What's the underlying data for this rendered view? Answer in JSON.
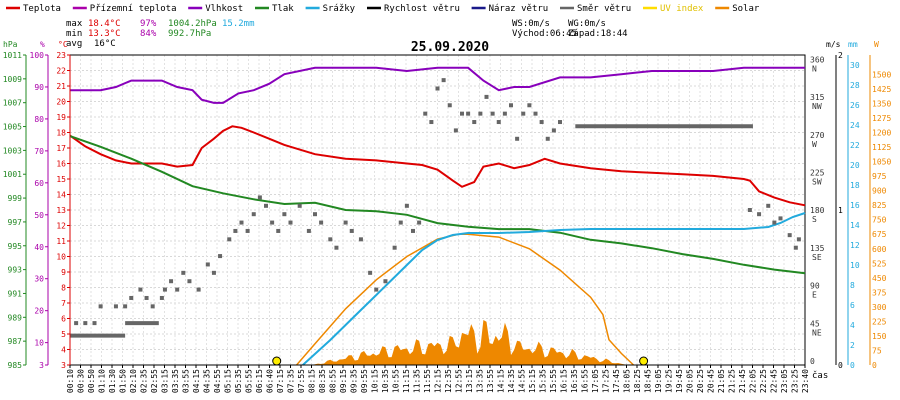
{
  "chart_data": {
    "type": "line",
    "title": "25.09.2020",
    "xlabel": "čas",
    "legend": [
      {
        "key": "teplota",
        "label": "Teplota",
        "color": "#dd0000"
      },
      {
        "key": "prizemni",
        "label": "Přízemní teplota",
        "color": "#aa00aa"
      },
      {
        "key": "vlhkost",
        "label": "Vlhkost",
        "color": "#8800bb"
      },
      {
        "key": "tlak",
        "label": "Tlak",
        "color": "#228822"
      },
      {
        "key": "srazky",
        "label": "Srážky",
        "color": "#22aadd"
      },
      {
        "key": "rychlost",
        "label": "Rychlost větru",
        "color": "#000000"
      },
      {
        "key": "naraz",
        "label": "Náraz větru",
        "color": "#1a1a8a"
      },
      {
        "key": "smer",
        "label": "Směr větru",
        "color": "#666666"
      },
      {
        "key": "uv",
        "label": "UV index",
        "color": "#ffdd00"
      },
      {
        "key": "solar",
        "label": "Solar",
        "color": "#ee8800"
      }
    ],
    "stats": {
      "max_label": "max",
      "max_temp": "18.4°C",
      "max_hum": "97%",
      "max_press": "1004.2hPa",
      "max_rain": "15.2mm",
      "min_label": "min",
      "min_temp": "13.3°C",
      "min_hum": "84%",
      "min_press": "992.7hPa",
      "avg_label": "avg",
      "avg_temp": "16°C",
      "ws": "WS:0m/s",
      "wg": "WG:0m/s",
      "sunrise": "Východ:06:45",
      "sunset": "Západ:18:44"
    },
    "axes_left": {
      "hpa": {
        "unit": "hPa",
        "color": "#228822",
        "ticks": [
          "985",
          "987",
          "989",
          "991",
          "993",
          "995",
          "997",
          "999",
          "1001",
          "1003",
          "1005",
          "1007",
          "1009",
          "1011"
        ]
      },
      "pct": {
        "unit": "%",
        "color": "#aa00aa",
        "ticks": [
          "3",
          "10",
          "20",
          "30",
          "40",
          "50",
          "60",
          "70",
          "80",
          "90",
          "100"
        ]
      },
      "degc": {
        "unit": "°C",
        "color": "#dd0000",
        "ticks": [
          "3",
          "4",
          "5",
          "6",
          "7",
          "8",
          "9",
          "10",
          "11",
          "12",
          "13",
          "14",
          "15",
          "16",
          "17",
          "18",
          "19",
          "20",
          "21",
          "22",
          "23"
        ]
      }
    },
    "axes_right": {
      "dir": {
        "ticks": [
          {
            "v": 0,
            "d": ""
          },
          {
            "v": 45,
            "d": "NE"
          },
          {
            "v": 90,
            "d": "E"
          },
          {
            "v": 135,
            "d": "SE"
          },
          {
            "v": 180,
            "d": "S"
          },
          {
            "v": 225,
            "d": "SW"
          },
          {
            "v": 270,
            "d": "W"
          },
          {
            "v": 315,
            "d": "NW"
          },
          {
            "v": 360,
            "d": "N"
          }
        ]
      },
      "ms": {
        "unit": "m/s",
        "ticks": [
          "0",
          "1",
          "2"
        ]
      },
      "mm": {
        "unit": "mm",
        "color": "#22aadd",
        "ticks": [
          "0",
          "2",
          "4",
          "6",
          "8",
          "10",
          "12",
          "14",
          "16",
          "18",
          "20",
          "22",
          "24",
          "26",
          "28",
          "30"
        ]
      },
      "w": {
        "unit": "W",
        "color": "#ee8800",
        "ticks": [
          "0",
          "75",
          "150",
          "225",
          "300",
          "375",
          "450",
          "525",
          "600",
          "675",
          "750",
          "825",
          "900",
          "975",
          "1050",
          "1125",
          "1200",
          "1275",
          "1350",
          "1425",
          "1500"
        ]
      }
    },
    "x_ticks": [
      "00:10",
      "00:30",
      "00:50",
      "01:10",
      "01:30",
      "01:50",
      "02:10",
      "02:35",
      "02:55",
      "03:15",
      "03:35",
      "03:55",
      "04:15",
      "04:35",
      "04:55",
      "05:15",
      "05:35",
      "05:55",
      "06:15",
      "06:40",
      "07:15",
      "07:35",
      "07:55",
      "08:15",
      "08:35",
      "08:55",
      "09:15",
      "09:35",
      "09:55",
      "10:15",
      "10:35",
      "10:55",
      "11:15",
      "11:35",
      "11:55",
      "12:15",
      "12:35",
      "12:55",
      "13:15",
      "13:35",
      "13:55",
      "14:15",
      "14:35",
      "14:55",
      "15:15",
      "15:35",
      "15:55",
      "16:15",
      "16:35",
      "16:55",
      "17:05",
      "17:25",
      "17:45",
      "18:05",
      "18:25",
      "18:45",
      "19:05",
      "19:25",
      "19:45",
      "20:05",
      "20:25",
      "20:45",
      "21:05",
      "21:25",
      "21:45",
      "22:05",
      "22:25",
      "22:45",
      "23:05",
      "23:25",
      "23:40"
    ],
    "x_range_hours": [
      0,
      24
    ],
    "series": [
      {
        "key": "teplota",
        "name": "Teplota",
        "color": "#dd0000",
        "axis": "degc",
        "x": [
          0,
          0.5,
          1,
          1.5,
          2,
          2.5,
          3,
          3.5,
          4,
          4.3,
          4.7,
          5,
          5.3,
          5.6,
          6,
          6.5,
          7,
          8,
          9,
          10,
          11,
          11.5,
          12,
          12.5,
          12.8,
          13.2,
          13.5,
          14,
          14.5,
          15,
          15.5,
          16,
          17,
          18,
          19,
          20,
          21,
          22,
          22.2,
          22.5,
          23,
          23.5,
          24
        ],
        "y": [
          17.8,
          17.1,
          16.6,
          16.2,
          16.0,
          16.0,
          16.0,
          15.8,
          15.9,
          17.0,
          17.6,
          18.1,
          18.4,
          18.3,
          18.0,
          17.6,
          17.2,
          16.6,
          16.3,
          16.2,
          16.0,
          15.9,
          15.6,
          14.9,
          14.5,
          14.8,
          15.8,
          16.0,
          15.7,
          15.9,
          16.3,
          16.0,
          15.7,
          15.5,
          15.4,
          15.3,
          15.2,
          15.0,
          14.9,
          14.2,
          13.8,
          13.5,
          13.3
        ]
      },
      {
        "key": "vlhkost",
        "name": "Vlhkost",
        "color": "#8800bb",
        "axis": "pct",
        "x": [
          0,
          0.5,
          1,
          1.5,
          2,
          2.5,
          3,
          3.5,
          4,
          4.3,
          4.7,
          5,
          5.5,
          6,
          6.5,
          7,
          8,
          9,
          10,
          11,
          12,
          12.5,
          13,
          13.5,
          14,
          14.5,
          15,
          16,
          17,
          18,
          19,
          20,
          21,
          22,
          23,
          24
        ],
        "y": [
          89,
          89,
          89,
          90,
          92,
          92,
          92,
          90,
          89,
          86,
          85,
          85,
          88,
          89,
          91,
          94,
          96,
          96,
          96,
          95,
          96,
          96,
          96,
          92,
          89,
          90,
          90,
          93,
          93,
          94,
          95,
          95,
          95,
          96,
          96,
          96
        ]
      },
      {
        "key": "tlak",
        "name": "Tlak",
        "color": "#228822",
        "axis": "hpa",
        "x": [
          0,
          1,
          2,
          3,
          4,
          5,
          6,
          7,
          8,
          9,
          10,
          11,
          12,
          13,
          14,
          15,
          16,
          17,
          18,
          19,
          20,
          21,
          22,
          23,
          24
        ],
        "y": [
          1004.2,
          1003.3,
          1002.3,
          1001.2,
          1000.0,
          999.4,
          998.9,
          998.5,
          998.6,
          998.0,
          997.9,
          997.6,
          996.9,
          996.6,
          996.4,
          996.4,
          996.1,
          995.5,
          995.2,
          994.8,
          994.3,
          993.9,
          993.4,
          993.0,
          992.7
        ]
      },
      {
        "key": "srazky",
        "name": "Srážky",
        "color": "#22aadd",
        "axis": "mm",
        "x": [
          7.6,
          8.5,
          9.0,
          9.5,
          10.0,
          10.5,
          11.0,
          11.5,
          12.0,
          12.5,
          13.0,
          14.0,
          15.0,
          16.0,
          17.0,
          18.0,
          19.0,
          20.0,
          21.0,
          22.0,
          22.8,
          23.2,
          23.6,
          24.0
        ],
        "y": [
          0,
          2.5,
          4.0,
          5.5,
          7.0,
          8.5,
          10.0,
          11.5,
          12.5,
          13.0,
          13.2,
          13.2,
          13.3,
          13.5,
          13.6,
          13.6,
          13.6,
          13.6,
          13.6,
          13.6,
          13.8,
          14.2,
          14.8,
          15.2
        ]
      },
      {
        "key": "solar",
        "name": "Solar",
        "color": "#ee8800",
        "axis": "w",
        "x": [
          7.4,
          8,
          9,
          10,
          11,
          12,
          12.7,
          13,
          14,
          15,
          16,
          17,
          17.4,
          17.6,
          18,
          18.4
        ],
        "y": [
          0,
          110,
          290,
          440,
          560,
          650,
          675,
          675,
          660,
          600,
          490,
          350,
          260,
          130,
          60,
          0
        ]
      },
      {
        "key": "rychlost",
        "name": "Rychlost větru",
        "color": "#000000",
        "axis": "ms",
        "x": [
          0,
          24
        ],
        "y": [
          0,
          0
        ]
      },
      {
        "key": "smer",
        "name": "Směr větru",
        "color": "#666666",
        "axis": "dir",
        "style": "points",
        "x": [
          0.2,
          0.5,
          0.8,
          1.0,
          1.5,
          1.8,
          2.0,
          2.3,
          2.5,
          2.7,
          3.0,
          3.1,
          3.3,
          3.5,
          3.7,
          3.9,
          4.2,
          4.5,
          4.7,
          4.9,
          5.2,
          5.4,
          5.6,
          5.8,
          6.0,
          6.2,
          6.4,
          6.6,
          6.8,
          7.0,
          7.2,
          7.5,
          7.8,
          8.0,
          8.2,
          8.5,
          8.7,
          9.0,
          9.2,
          9.5,
          9.8,
          10.0,
          10.3,
          10.6,
          10.8,
          11.0,
          11.2,
          11.4,
          11.6,
          11.8,
          12.0,
          12.2,
          12.4,
          12.6,
          12.8,
          13.0,
          13.2,
          13.4,
          13.6,
          13.8,
          14.0,
          14.2,
          14.4,
          14.6,
          14.8,
          15.0,
          15.2,
          15.4,
          15.6,
          15.8,
          16.0,
          22.2,
          22.5,
          22.8,
          23.0,
          23.2,
          23.5,
          23.7,
          23.8
        ],
        "y": [
          50,
          50,
          50,
          70,
          70,
          70,
          80,
          90,
          80,
          70,
          80,
          90,
          100,
          90,
          110,
          100,
          90,
          120,
          110,
          130,
          150,
          160,
          170,
          160,
          180,
          200,
          190,
          170,
          160,
          180,
          170,
          190,
          160,
          180,
          170,
          150,
          140,
          170,
          160,
          150,
          110,
          90,
          100,
          140,
          170,
          190,
          160,
          170,
          300,
          290,
          330,
          340,
          310,
          280,
          300,
          300,
          290,
          300,
          320,
          300,
          290,
          300,
          310,
          270,
          300,
          310,
          300,
          290,
          270,
          280,
          290,
          185,
          180,
          190,
          170,
          175,
          155,
          140,
          150
        ]
      },
      {
        "key": "smer_flat",
        "name": "Směr větru",
        "color": "#666666",
        "axis": "dir",
        "style": "steps",
        "x": [
          0,
          1.8,
          1.8,
          2.9,
          16.5,
          22.3
        ],
        "y": [
          35,
          35,
          50,
          50,
          285,
          285
        ]
      }
    ],
    "uv_markers_hours": [
      6.75,
      18.73
    ]
  }
}
